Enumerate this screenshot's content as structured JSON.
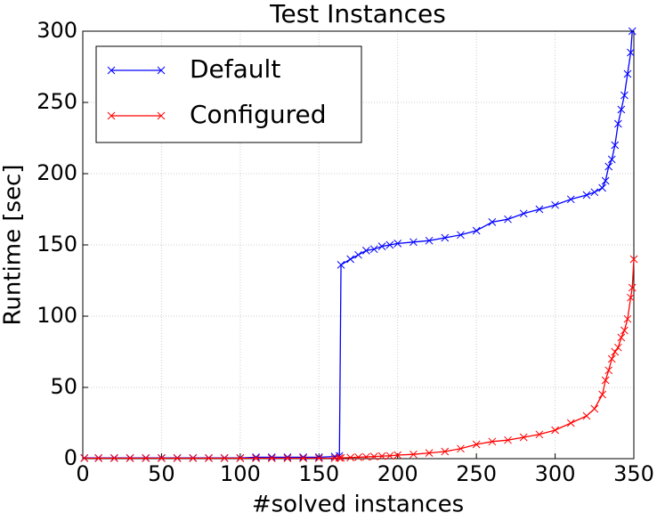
{
  "chart_data": {
    "type": "line",
    "title": "Test Instances",
    "x_label": "#solved instances",
    "y_label": "Runtime [sec]",
    "x": [
      1,
      10,
      20,
      30,
      40,
      50,
      60,
      70,
      80,
      90,
      100,
      110,
      120,
      130,
      140,
      150,
      160,
      163,
      164,
      170,
      175,
      180,
      185,
      190,
      195,
      200,
      210,
      220,
      230,
      240,
      250,
      260,
      270,
      280,
      290,
      300,
      310,
      320,
      325,
      330,
      332,
      334,
      336,
      338,
      340,
      342,
      344,
      346,
      348,
      349,
      350
    ],
    "series": [
      {
        "name": "Default",
        "color": "#0000ff",
        "values": [
          0.5,
          0.5,
          0.5,
          0.5,
          0.5,
          0.5,
          0.5,
          0.5,
          0.5,
          0.5,
          0.5,
          1,
          1,
          1,
          1,
          1,
          1.5,
          2,
          136,
          140,
          143,
          146,
          147,
          149,
          150,
          151,
          152,
          153,
          155,
          157,
          160,
          166,
          168,
          172,
          175,
          178,
          182,
          185,
          187,
          190,
          195,
          205,
          210,
          220,
          235,
          245,
          255,
          270,
          285,
          300,
          null
        ]
      },
      {
        "name": "Configured",
        "color": "#ff0000",
        "values": [
          0.3,
          0.3,
          0.3,
          0.3,
          0.3,
          0.3,
          0.3,
          0.3,
          0.3,
          0.3,
          0.3,
          0.3,
          0.3,
          0.3,
          0.3,
          0.3,
          0.3,
          0.5,
          0.5,
          0.8,
          1,
          1.2,
          1.5,
          1.8,
          2,
          2.5,
          3,
          4,
          5,
          7,
          10,
          12,
          13,
          15,
          17,
          20,
          25,
          30,
          35,
          45,
          55,
          62,
          70,
          75,
          78,
          85,
          90,
          98,
          113,
          120,
          140
        ]
      }
    ],
    "xlim": [
      0,
      350
    ],
    "xticks": [
      0,
      50,
      100,
      150,
      200,
      250,
      300,
      350
    ],
    "ylim": [
      0,
      300
    ],
    "yticks": [
      0,
      50,
      100,
      150,
      200,
      250,
      300
    ],
    "grid": true,
    "legend": "upper left"
  }
}
